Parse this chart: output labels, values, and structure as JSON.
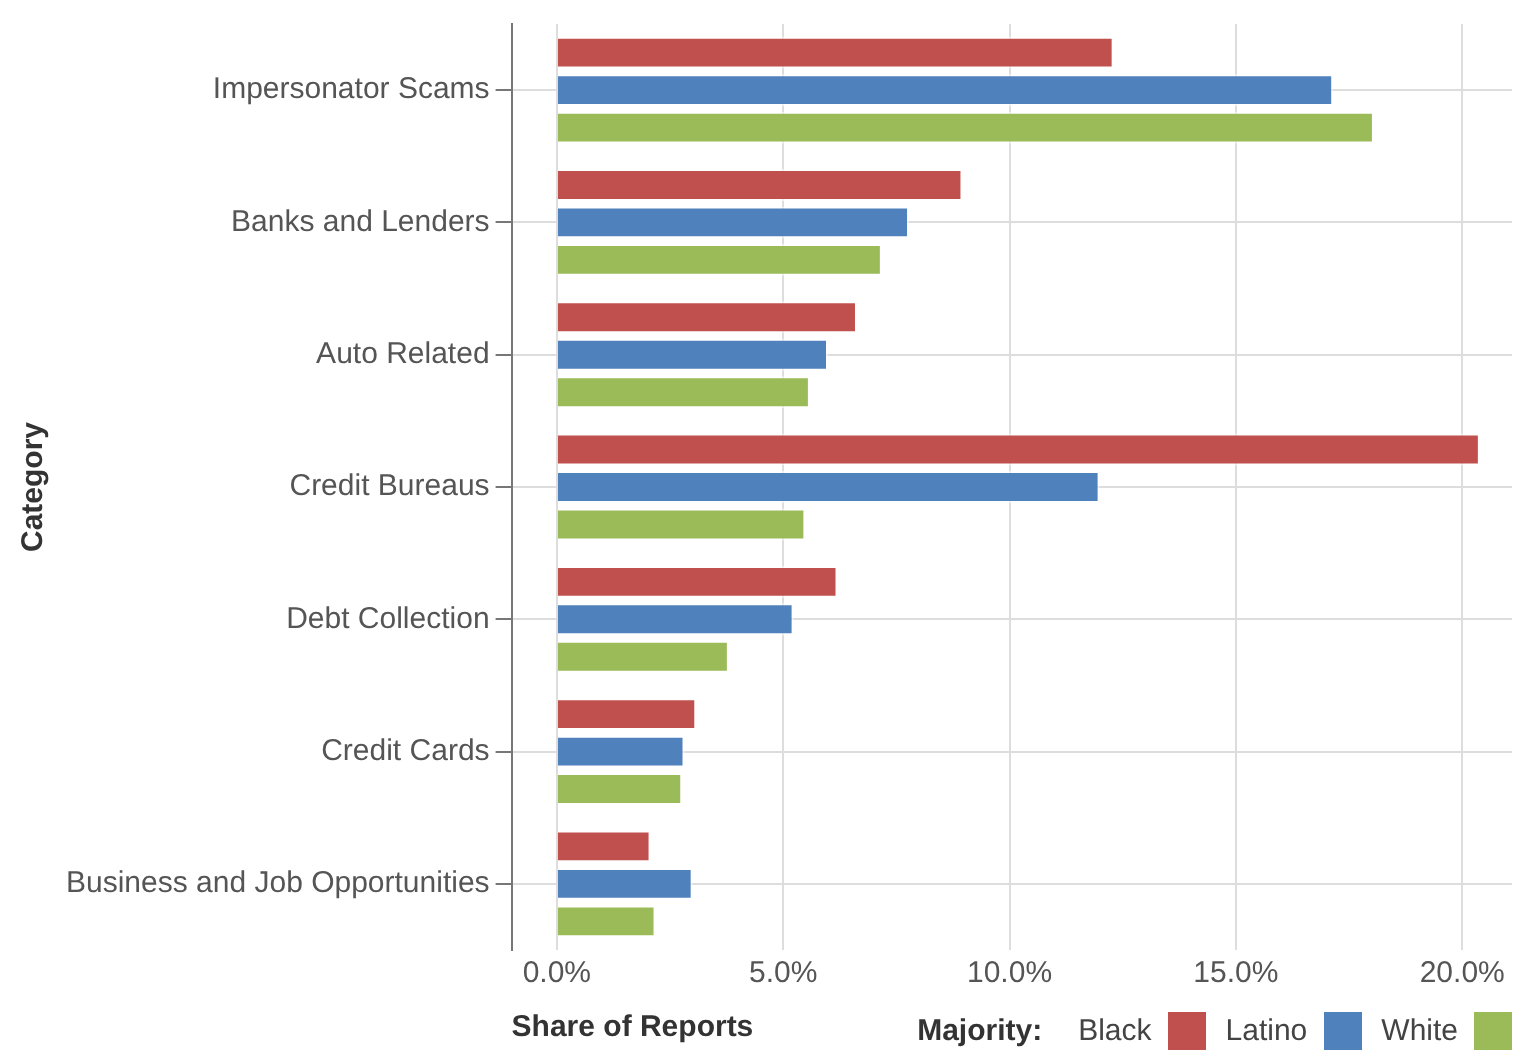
{
  "chart_data": {
    "type": "bar",
    "orientation": "horizontal",
    "xlabel": "Share of Reports",
    "ylabel": "Category",
    "legend_title": "Majority:",
    "legend": "bottom right",
    "grid": true,
    "categories": [
      "Impersonator Scams",
      "Banks and Lenders",
      "Auto Related",
      "Credit Bureaus",
      "Debt Collection",
      "Credit Cards",
      "Business and Job Opportunities"
    ],
    "series": [
      {
        "name": "Black",
        "color": "#c0504d",
        "values": [
          12.3,
          8.96,
          6.63,
          20.39,
          6.2,
          3.08,
          2.07
        ]
      },
      {
        "name": "Latino",
        "color": "#4f81bd",
        "values": [
          17.15,
          7.78,
          5.99,
          11.99,
          5.23,
          2.82,
          3.0
        ]
      },
      {
        "name": "White",
        "color": "#9bbb59",
        "values": [
          18.05,
          7.18,
          5.59,
          5.49,
          3.8,
          2.77,
          2.18
        ]
      }
    ],
    "xlim": [
      -1,
      21.1
    ],
    "xticks": [
      {
        "value": 0,
        "label": "0.0%"
      },
      {
        "value": 5,
        "label": "5.0%"
      },
      {
        "value": 10,
        "label": "10.0%"
      },
      {
        "value": 15,
        "label": "15.0%"
      },
      {
        "value": 20,
        "label": "20.0%"
      }
    ]
  }
}
